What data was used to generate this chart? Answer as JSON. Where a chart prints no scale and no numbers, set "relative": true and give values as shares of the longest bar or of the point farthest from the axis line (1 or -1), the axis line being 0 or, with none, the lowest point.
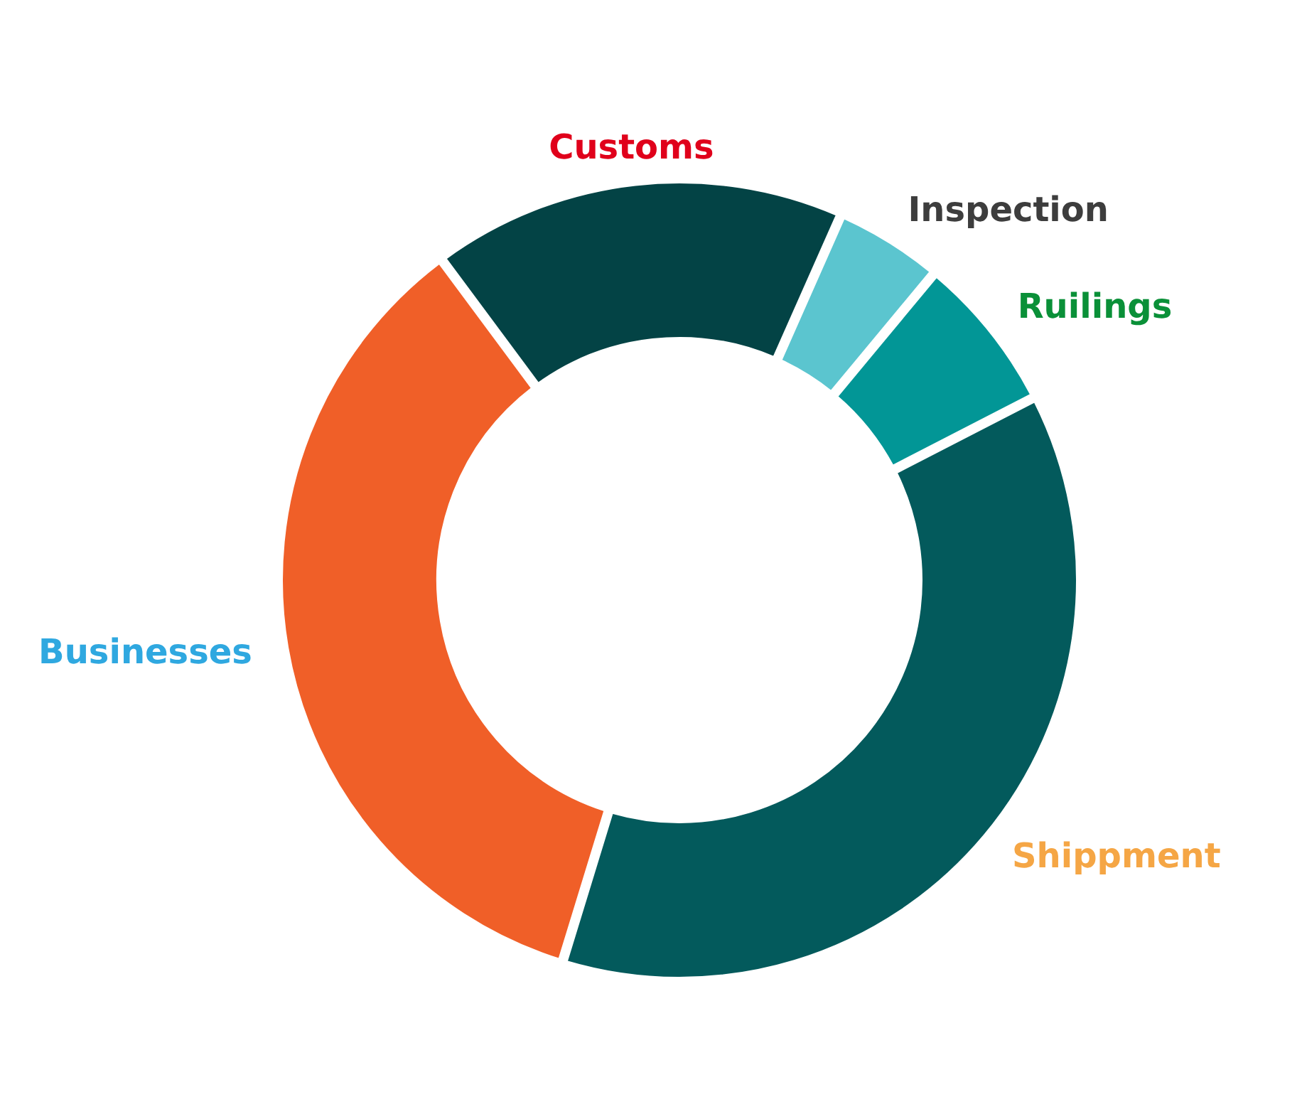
{
  "chart_data": {
    "type": "donut",
    "relative": true,
    "categories": [
      "Customs",
      "Inspection",
      "Ruilings",
      "Shippment",
      "Businesses"
    ],
    "values": [
      16.8,
      4.4,
      6.4,
      37.3,
      35.1
    ],
    "colors": [
      "#034345",
      "#5bc5cf",
      "#029696",
      "#035a5c",
      "#f05f28"
    ]
  }
}
